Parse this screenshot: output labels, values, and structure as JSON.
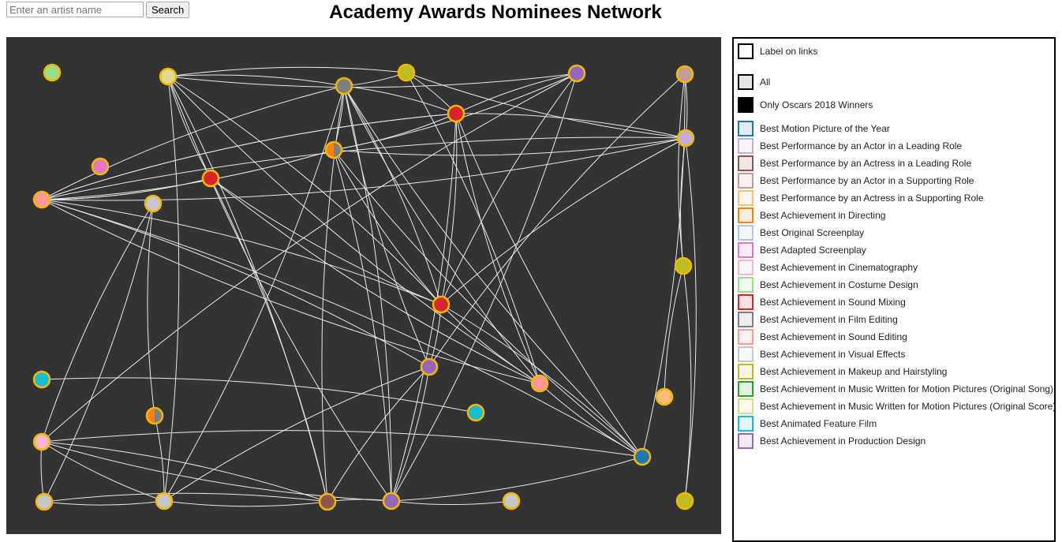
{
  "header": {
    "search_placeholder": "Enter an artist name",
    "search_button": "Search",
    "title": "Academy Awards Nominees Network"
  },
  "legend": {
    "toggles": [
      {
        "label": "Label on links",
        "fill": "#ffffff"
      },
      {
        "label": "All",
        "fill": "#e6e6e6"
      },
      {
        "label": "Only Oscars 2018 Winners",
        "fill": "#000000"
      }
    ],
    "categories": [
      {
        "label": "Best Motion Picture of the Year",
        "color": "#1f77b4"
      },
      {
        "label": "Best Performance by an Actor in a Leading Role",
        "color": "#c5b0d5"
      },
      {
        "label": "Best Performance by an Actress in a Leading Role",
        "color": "#8c564b"
      },
      {
        "label": "Best Performance by an Actor in a Supporting Role",
        "color": "#c49c94"
      },
      {
        "label": "Best Performance by an Actress in a Supporting Role",
        "color": "#ffbb78"
      },
      {
        "label": "Best Achievement in Directing",
        "color": "#ff7f0e"
      },
      {
        "label": "Best Original Screenplay",
        "color": "#aec7e8"
      },
      {
        "label": "Best Adapted Screenplay",
        "color": "#e377c2"
      },
      {
        "label": "Best Achievement in Cinematography",
        "color": "#f7b6d2"
      },
      {
        "label": "Best Achievement in Costume Design",
        "color": "#98df8a"
      },
      {
        "label": "Best Achievement in Sound Mixing",
        "color": "#d62728"
      },
      {
        "label": "Best Achievement in Film Editing",
        "color": "#7f7f7f"
      },
      {
        "label": "Best Achievement in Sound Editing",
        "color": "#ff9896"
      },
      {
        "label": "Best Achievement in Visual Effects",
        "color": "#c7c7c7"
      },
      {
        "label": "Best Achievement in Makeup and Hairstyling",
        "color": "#bcbd22"
      },
      {
        "label": "Best Achievement in Music Written for Motion Pictures (Original Song)",
        "color": "#2ca02c"
      },
      {
        "label": "Best Achievement in Music Written for Motion Pictures (Original Score)",
        "color": "#dbdb8d"
      },
      {
        "label": "Best Animated Feature Film",
        "color": "#17becf"
      },
      {
        "label": "Best Achievement in Production Design",
        "color": "#9467bd"
      }
    ]
  },
  "graph": {
    "background": "#333333",
    "link_color": "#e8e8e8",
    "node_stroke": "#f2b705",
    "nodes": [
      {
        "fill": "#98df8a"
      },
      {
        "fill": "#dbdb8d"
      },
      {
        "fill": "#7f7f7f"
      },
      {
        "fill": "#bcbd22"
      },
      {
        "fill": "#9467bd"
      },
      {
        "fill": "#c49c94"
      },
      {
        "fill": "#d62728"
      },
      {
        "fill": "#c5b0d5"
      },
      {
        "fill": "#e377c2"
      },
      {
        "fill": "#ff7f0e",
        "fill2": "#7f7f7f"
      },
      {
        "fill": "#d62728"
      },
      {
        "fill": "#ff9896"
      },
      {
        "fill": "#c7c7c7"
      },
      {
        "fill": "#bcbd22"
      },
      {
        "fill": "#d62728"
      },
      {
        "fill": "#9467bd"
      },
      {
        "fill": "#17becf"
      },
      {
        "fill": "#ff9896"
      },
      {
        "fill": "#ffbb78"
      },
      {
        "fill": "#ff7f0e",
        "fill2": "#7f7f7f"
      },
      {
        "fill": "#17becf"
      },
      {
        "fill": "#f7b6d2"
      },
      {
        "fill": "#1f77b4"
      },
      {
        "fill": "#c7c7c7"
      },
      {
        "fill": "#c7c7c7"
      },
      {
        "fill": "#8c564b"
      },
      {
        "fill": "#9467bd"
      },
      {
        "fill": "#c7c7c7"
      },
      {
        "fill": "#bcbd22"
      }
    ],
    "links": [
      [
        1,
        2
      ],
      [
        1,
        4
      ],
      [
        1,
        3
      ],
      [
        1,
        10
      ],
      [
        1,
        14
      ],
      [
        1,
        17
      ],
      [
        1,
        25
      ],
      [
        1,
        26
      ],
      [
        1,
        24
      ],
      [
        2,
        3
      ],
      [
        2,
        6
      ],
      [
        2,
        11
      ],
      [
        2,
        9
      ],
      [
        2,
        17
      ],
      [
        2,
        14
      ],
      [
        2,
        15
      ],
      [
        2,
        26
      ],
      [
        2,
        25
      ],
      [
        2,
        24
      ],
      [
        2,
        22
      ],
      [
        3,
        6
      ],
      [
        3,
        7
      ],
      [
        3,
        17
      ],
      [
        4,
        6
      ],
      [
        4,
        26
      ],
      [
        4,
        21
      ],
      [
        4,
        9
      ],
      [
        4,
        14
      ],
      [
        5,
        7
      ],
      [
        5,
        13
      ],
      [
        5,
        22
      ],
      [
        5,
        15
      ],
      [
        6,
        9
      ],
      [
        6,
        11
      ],
      [
        6,
        14
      ],
      [
        6,
        17
      ],
      [
        6,
        26
      ],
      [
        6,
        22
      ],
      [
        6,
        7
      ],
      [
        7,
        13
      ],
      [
        7,
        28
      ],
      [
        7,
        11
      ],
      [
        7,
        9
      ],
      [
        7,
        14
      ],
      [
        9,
        11
      ],
      [
        9,
        22
      ],
      [
        9,
        26
      ],
      [
        9,
        14
      ],
      [
        10,
        11
      ],
      [
        10,
        14
      ],
      [
        10,
        25
      ],
      [
        10,
        17
      ],
      [
        11,
        6
      ],
      [
        11,
        7
      ],
      [
        11,
        14
      ],
      [
        11,
        17
      ],
      [
        11,
        15
      ],
      [
        11,
        10
      ],
      [
        11,
        22
      ],
      [
        12,
        21
      ],
      [
        12,
        23
      ],
      [
        12,
        19
      ],
      [
        13,
        28
      ],
      [
        13,
        18
      ],
      [
        14,
        15
      ],
      [
        14,
        17
      ],
      [
        14,
        22
      ],
      [
        15,
        25
      ],
      [
        15,
        26
      ],
      [
        15,
        24
      ],
      [
        16,
        20
      ],
      [
        17,
        22
      ],
      [
        19,
        24
      ],
      [
        21,
        23
      ],
      [
        21,
        25
      ],
      [
        21,
        26
      ],
      [
        21,
        22
      ],
      [
        21,
        24
      ],
      [
        22,
        26
      ],
      [
        23,
        24
      ],
      [
        23,
        25
      ],
      [
        24,
        25
      ],
      [
        25,
        26
      ],
      [
        26,
        27
      ]
    ]
  }
}
